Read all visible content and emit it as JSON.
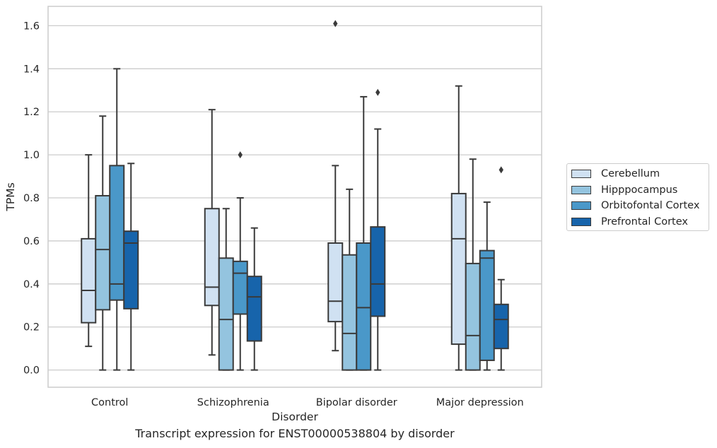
{
  "caption": "Transcript expression for ENST00000538804 by disorder",
  "chart_data": {
    "type": "box",
    "title": "",
    "xlabel": "Disorder",
    "ylabel": "TPMs",
    "ylim": [
      -0.08,
      1.69
    ],
    "yticks": [
      0.0,
      0.2,
      0.4,
      0.6,
      0.8,
      1.0,
      1.2,
      1.4,
      1.6
    ],
    "ytick_labels": [
      "0.0",
      "0.2",
      "0.4",
      "0.6",
      "0.8",
      "1.0",
      "1.2",
      "1.4",
      "1.6"
    ],
    "grid": "horizontal",
    "legend_position": "center-right-outside",
    "categories": [
      "Control",
      "Schizophrenia",
      "Bipolar disorder",
      "Major depression"
    ],
    "series": [
      {
        "name": "Cerebellum",
        "color": "#d0e1f2",
        "boxes": [
          {
            "whisker_low": 0.11,
            "q1": 0.22,
            "median": 0.37,
            "q3": 0.61,
            "whisker_high": 1.0,
            "outliers": []
          },
          {
            "whisker_low": 0.07,
            "q1": 0.3,
            "median": 0.385,
            "q3": 0.75,
            "whisker_high": 1.21,
            "outliers": []
          },
          {
            "whisker_low": 0.09,
            "q1": 0.225,
            "median": 0.32,
            "q3": 0.59,
            "whisker_high": 0.95,
            "outliers": [
              1.61
            ]
          },
          {
            "whisker_low": 0.0,
            "q1": 0.12,
            "median": 0.61,
            "q3": 0.82,
            "whisker_high": 1.32,
            "outliers": []
          }
        ]
      },
      {
        "name": "Hipppocampus",
        "color": "#94c4df",
        "boxes": [
          {
            "whisker_low": 0.0,
            "q1": 0.28,
            "median": 0.56,
            "q3": 0.81,
            "whisker_high": 1.18,
            "outliers": []
          },
          {
            "whisker_low": 0.0,
            "q1": 0.0,
            "median": 0.235,
            "q3": 0.52,
            "whisker_high": 0.75,
            "outliers": []
          },
          {
            "whisker_low": 0.0,
            "q1": 0.0,
            "median": 0.17,
            "q3": 0.535,
            "whisker_high": 0.84,
            "outliers": []
          },
          {
            "whisker_low": 0.0,
            "q1": 0.0,
            "median": 0.16,
            "q3": 0.495,
            "whisker_high": 0.98,
            "outliers": []
          }
        ]
      },
      {
        "name": "Orbitofontal Cortex",
        "color": "#4a98c9",
        "boxes": [
          {
            "whisker_low": 0.0,
            "q1": 0.325,
            "median": 0.4,
            "q3": 0.95,
            "whisker_high": 1.4,
            "outliers": []
          },
          {
            "whisker_low": 0.0,
            "q1": 0.26,
            "median": 0.45,
            "q3": 0.505,
            "whisker_high": 0.8,
            "outliers": [
              1.0
            ]
          },
          {
            "whisker_low": 0.0,
            "q1": 0.0,
            "median": 0.29,
            "q3": 0.59,
            "whisker_high": 1.27,
            "outliers": []
          },
          {
            "whisker_low": 0.0,
            "q1": 0.045,
            "median": 0.52,
            "q3": 0.555,
            "whisker_high": 0.78,
            "outliers": []
          }
        ]
      },
      {
        "name": "Prefrontal Cortex",
        "color": "#1764ab",
        "boxes": [
          {
            "whisker_low": 0.0,
            "q1": 0.285,
            "median": 0.59,
            "q3": 0.645,
            "whisker_high": 0.96,
            "outliers": []
          },
          {
            "whisker_low": 0.0,
            "q1": 0.135,
            "median": 0.34,
            "q3": 0.435,
            "whisker_high": 0.66,
            "outliers": []
          },
          {
            "whisker_low": 0.0,
            "q1": 0.25,
            "median": 0.4,
            "q3": 0.665,
            "whisker_high": 1.12,
            "outliers": [
              1.29
            ]
          },
          {
            "whisker_low": 0.0,
            "q1": 0.1,
            "median": 0.235,
            "q3": 0.305,
            "whisker_high": 0.42,
            "outliers": [
              0.93
            ]
          }
        ]
      }
    ]
  }
}
